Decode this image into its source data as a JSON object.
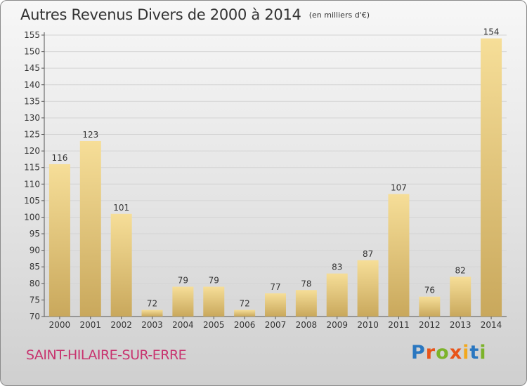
{
  "title": "Autres Revenus Divers de 2000 à 2014",
  "unit": "(en milliers d'€)",
  "commune": "SAINT-HILAIRE-SUR-ERRE",
  "logo": {
    "letters": [
      "P",
      "r",
      "o",
      "x",
      "i",
      "t",
      "i"
    ]
  },
  "colors": {
    "bar_light": "#f5dd95",
    "bar_dark": "#c9a85c",
    "title": "#333333",
    "commune": "#c8326e"
  },
  "chart_data": {
    "type": "bar",
    "categories": [
      "2000",
      "2001",
      "2002",
      "2003",
      "2004",
      "2005",
      "2006",
      "2007",
      "2008",
      "2009",
      "2010",
      "2011",
      "2012",
      "2013",
      "2014"
    ],
    "values": [
      116,
      123,
      101,
      72,
      79,
      79,
      72,
      77,
      78,
      83,
      87,
      107,
      76,
      82,
      154
    ],
    "ylim": [
      70,
      155
    ],
    "yticks": [
      70,
      75,
      80,
      85,
      90,
      95,
      100,
      105,
      110,
      115,
      120,
      125,
      130,
      135,
      140,
      145,
      150,
      155
    ],
    "grid": true,
    "title": "Autres Revenus Divers de 2000 à 2014",
    "xlabel": "",
    "ylabel": ""
  }
}
